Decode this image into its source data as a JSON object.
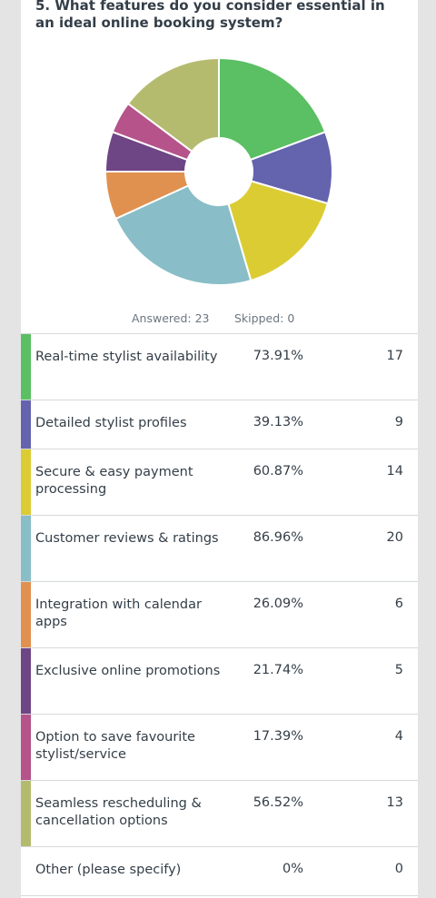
{
  "question": {
    "title": "5. What features do you consider essential in an ideal online booking system?"
  },
  "stats": {
    "answered": "Answered: 23",
    "skipped": "Skipped: 0"
  },
  "chart_data": {
    "type": "pie",
    "style": "donut",
    "categories": [
      "Real-time stylist availability",
      "Detailed stylist profiles",
      "Secure & easy payment processing",
      "Customer reviews & ratings",
      "Integration with calendar apps",
      "Exclusive online promotions",
      "Option to save favourite stylist/service",
      "Seamless rescheduling & cancellation options",
      "Other (please specify)"
    ],
    "values": [
      17,
      9,
      14,
      20,
      6,
      5,
      4,
      13,
      0
    ],
    "colors": [
      "#5bbf63",
      "#6463ae",
      "#dccc34",
      "#89bdc7",
      "#e0914f",
      "#6e4585",
      "#b5538a",
      "#b5bb6e",
      "#d0d0d0"
    ]
  },
  "rows": [
    {
      "label": "Real-time stylist availability",
      "percent": "73.91%",
      "count": "17",
      "color": "#5bbf63"
    },
    {
      "label": "Detailed stylist profiles",
      "percent": "39.13%",
      "count": "9",
      "color": "#6463ae"
    },
    {
      "label": "Secure & easy payment processing",
      "percent": "60.87%",
      "count": "14",
      "color": "#dccc34"
    },
    {
      "label": "Customer reviews & ratings",
      "percent": "86.96%",
      "count": "20",
      "color": "#89bdc7"
    },
    {
      "label": "Integration with calendar apps",
      "percent": "26.09%",
      "count": "6",
      "color": "#e0914f"
    },
    {
      "label": "Exclusive online promotions",
      "percent": "21.74%",
      "count": "5",
      "color": "#6e4585"
    },
    {
      "label": "Option to save favourite stylist/service",
      "percent": "17.39%",
      "count": "4",
      "color": "#b5538a"
    },
    {
      "label": "Seamless rescheduling & cancellation options",
      "percent": "56.52%",
      "count": "13",
      "color": "#b5bb6e"
    },
    {
      "label": "Other (please specify)",
      "percent": "0%",
      "count": "0",
      "color": ""
    }
  ]
}
